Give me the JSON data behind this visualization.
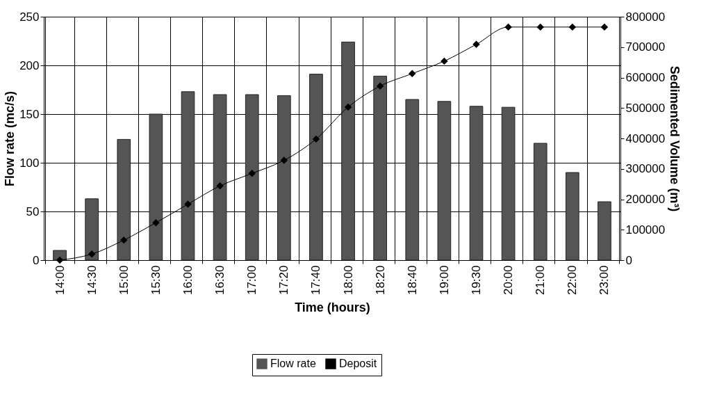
{
  "chart_data": {
    "type": "bar",
    "xlabel": "Time (hours)",
    "ylabel": "Flow rate (mc/s)",
    "y2label": "Sedimented Volume (m³)",
    "categories": [
      "14:00",
      "14:30",
      "15:00",
      "15:30",
      "16:00",
      "16:30",
      "17:00",
      "17:20",
      "17:40",
      "18:00",
      "18:20",
      "18:40",
      "19:00",
      "19:30",
      "20:00",
      "21:00",
      "22:00",
      "23:00"
    ],
    "series": [
      {
        "name": "Flow rate",
        "color": "#555555",
        "values": [
          10,
          63,
          124,
          150,
          173,
          170,
          170,
          169,
          191,
          224,
          189,
          165,
          163,
          158,
          157,
          120,
          90,
          60
        ]
      },
      {
        "name": "Deposit",
        "type": "line",
        "axis": "y2",
        "color": "#000000",
        "marker": "diamond",
        "values": [
          0,
          20000,
          66000,
          123000,
          184000,
          244000,
          285000,
          328000,
          398000,
          503000,
          572000,
          613000,
          654000,
          709000,
          766000,
          766000,
          766000,
          766000
        ]
      }
    ],
    "ylim": [
      0,
      250
    ],
    "yticks": [
      0,
      50,
      100,
      150,
      200,
      250
    ],
    "y2lim": [
      0,
      800000
    ],
    "y2ticks": [
      0,
      100000,
      200000,
      300000,
      400000,
      500000,
      600000,
      700000,
      800000
    ],
    "grid": true,
    "legend": "bottom"
  }
}
